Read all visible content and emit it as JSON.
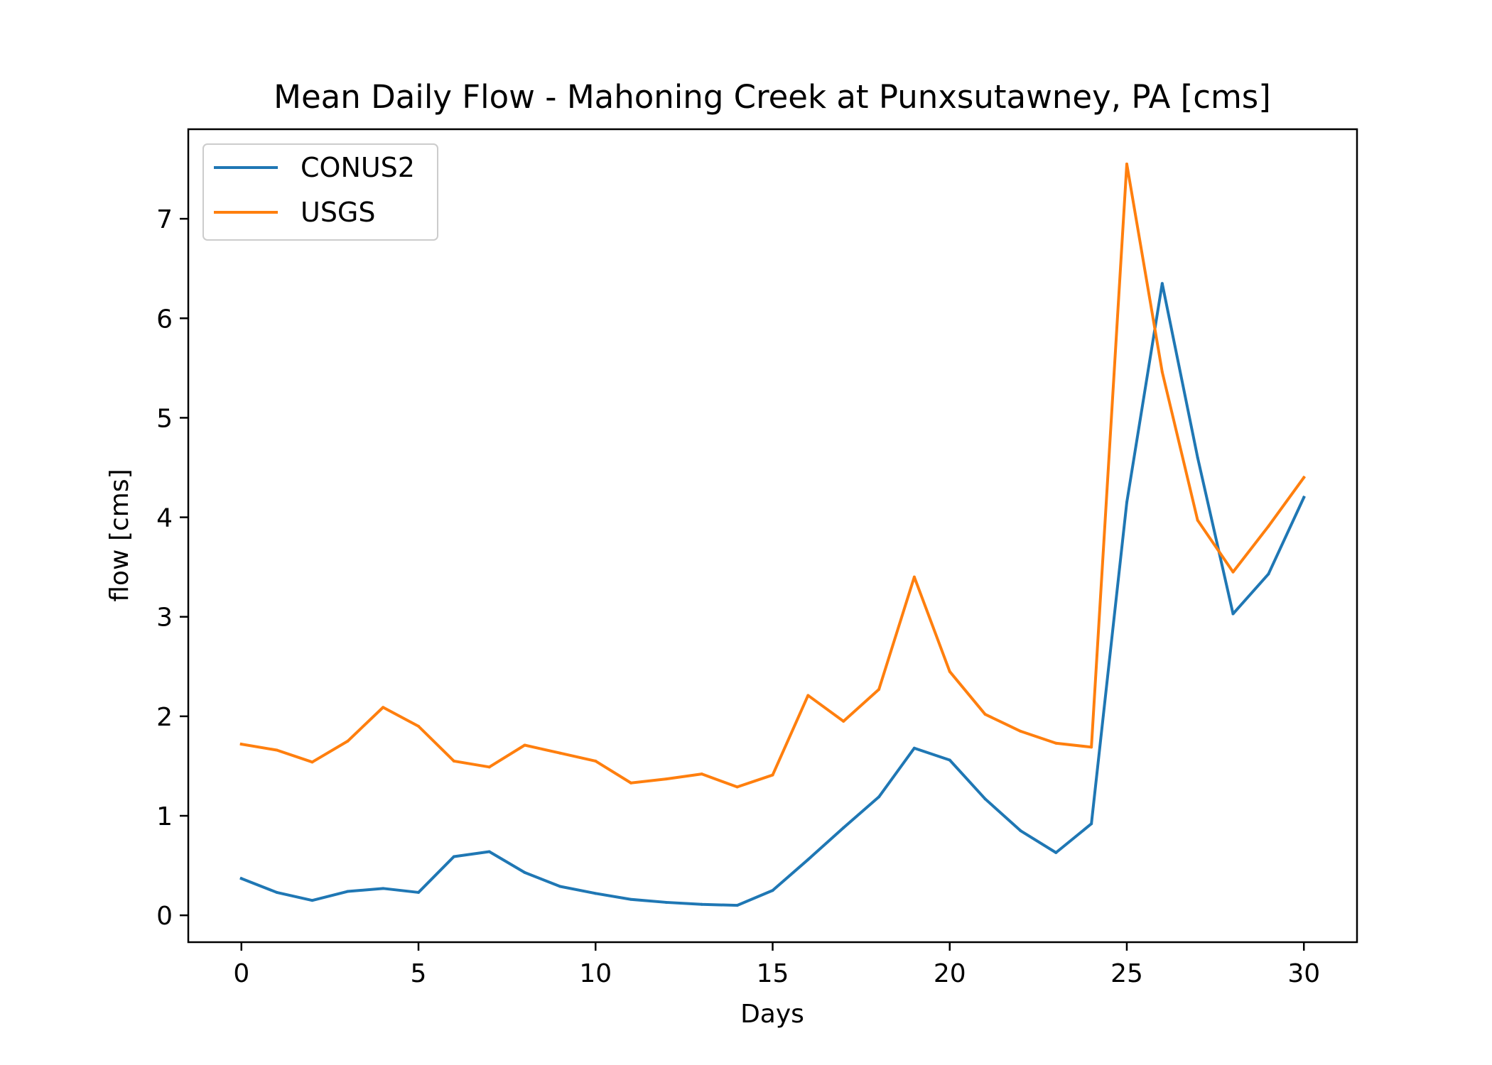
{
  "chart_data": {
    "type": "line",
    "title": "Mean Daily Flow - Mahoning Creek at Punxsutawney, PA [cms]",
    "xlabel": "Days",
    "ylabel": "flow [cms]",
    "xlim": [
      -1.5,
      31.5
    ],
    "ylim": [
      -0.27,
      7.9
    ],
    "xticks": [
      0,
      5,
      10,
      15,
      20,
      25,
      30
    ],
    "yticks": [
      0,
      1,
      2,
      3,
      4,
      5,
      6,
      7
    ],
    "grid": false,
    "legend_position": "top-left",
    "x": [
      0,
      1,
      2,
      3,
      4,
      5,
      6,
      7,
      8,
      9,
      10,
      11,
      12,
      13,
      14,
      15,
      16,
      17,
      18,
      19,
      20,
      21,
      22,
      23,
      24,
      25,
      26,
      27,
      28,
      29,
      30
    ],
    "series": [
      {
        "name": "CONUS2",
        "color": "#1f77b4",
        "values": [
          0.37,
          0.23,
          0.15,
          0.24,
          0.27,
          0.23,
          0.59,
          0.64,
          0.43,
          0.29,
          0.22,
          0.16,
          0.13,
          0.11,
          0.1,
          0.25,
          0.56,
          0.88,
          1.19,
          1.68,
          1.56,
          1.17,
          0.85,
          0.63,
          0.92,
          4.15,
          6.35,
          4.6,
          3.03,
          3.43,
          4.2
        ]
      },
      {
        "name": "USGS",
        "color": "#ff7f0e",
        "values": [
          1.72,
          1.66,
          1.54,
          1.75,
          2.09,
          1.9,
          1.55,
          1.49,
          1.71,
          1.63,
          1.55,
          1.33,
          1.37,
          1.42,
          1.29,
          1.41,
          2.21,
          1.95,
          2.27,
          3.4,
          2.45,
          2.02,
          1.85,
          1.73,
          1.69,
          7.55,
          5.46,
          3.97,
          3.45,
          3.91,
          4.4
        ]
      }
    ]
  }
}
